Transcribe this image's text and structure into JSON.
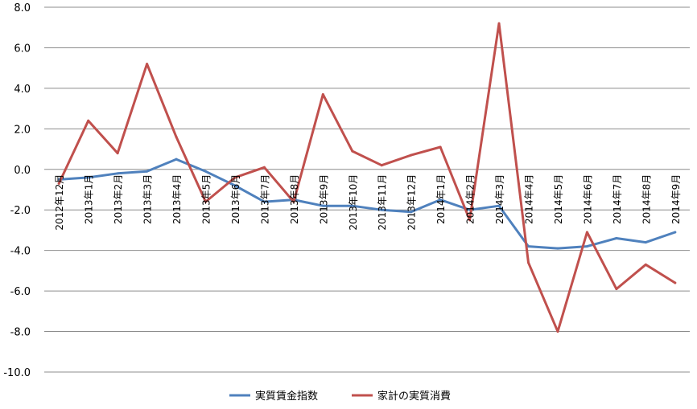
{
  "chart_data": {
    "type": "line",
    "title": "",
    "xlabel": "",
    "ylabel": "",
    "ylim": [
      -10,
      8
    ],
    "y_ticks": [
      8,
      6,
      4,
      2,
      0,
      -2,
      -4,
      -6,
      -8,
      -10
    ],
    "y_tick_labels": [
      "8.0",
      "6.0",
      "4.0",
      "2.0",
      "0.0",
      "-2.0",
      "-4.0",
      "-6.0",
      "-8.0",
      "-10.0"
    ],
    "grid": true,
    "legend_position": "bottom",
    "categories": [
      "2012年12月",
      "2013年1月",
      "2013年2月",
      "2013年3月",
      "2013年4月",
      "2013年5月",
      "2013年6月",
      "2013年7月",
      "2013年8月",
      "2013年9月",
      "2013年10月",
      "2013年11月",
      "2013年12月",
      "2014年1月",
      "2014年2月",
      "2014年3月",
      "2014年4月",
      "2014年5月",
      "2014年6月",
      "2014年7月",
      "2014年8月",
      "2014年9月"
    ],
    "series": [
      {
        "name": "実質賃金指数",
        "color": "#4f81bd",
        "values": [
          -0.5,
          -0.4,
          -0.2,
          -0.1,
          0.5,
          -0.1,
          -0.8,
          -1.6,
          -1.5,
          -1.8,
          -1.8,
          -2.0,
          -2.1,
          -1.5,
          -2.0,
          -1.8,
          -3.8,
          -3.9,
          -3.8,
          -3.4,
          -3.6,
          -3.1
        ]
      },
      {
        "name": "家計の実質消費",
        "color": "#c0504d",
        "values": [
          -0.7,
          2.4,
          0.8,
          5.2,
          1.6,
          -1.6,
          -0.4,
          0.1,
          -1.6,
          3.7,
          0.9,
          0.2,
          0.7,
          1.1,
          -2.5,
          7.2,
          -4.6,
          -8.0,
          -3.1,
          -5.9,
          -4.7,
          -5.6
        ]
      }
    ]
  }
}
